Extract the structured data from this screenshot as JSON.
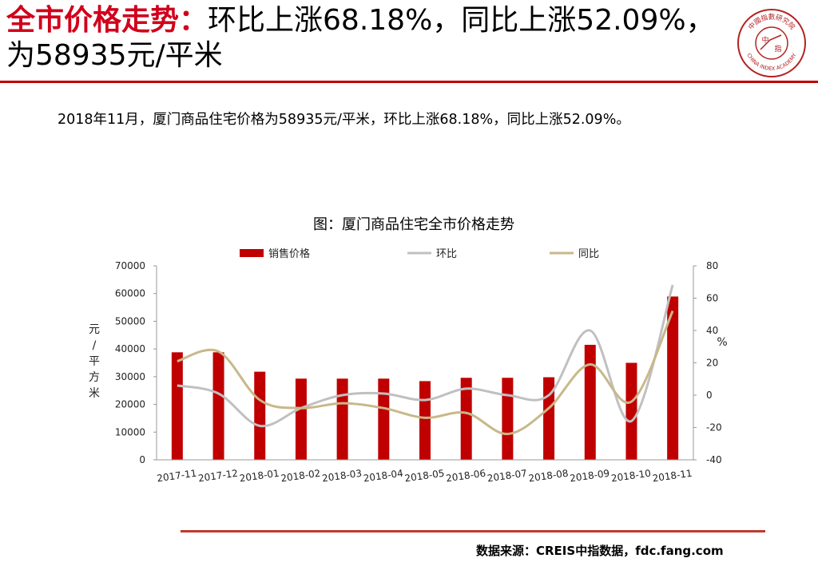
{
  "header": {
    "title_key": "全市价格走势：",
    "title_rest": "环比上涨68.18%，同比上涨52.09%，为58935元/平米"
  },
  "logo": {
    "icon": "china-index-academy-seal",
    "text_top": "中國指數研究院",
    "text_bottom": "CHINA INDEX ACADEMY",
    "center_a": "中",
    "center_b": "指",
    "color": "#b22222"
  },
  "summary": "2018年11月，厦门商品住宅价格为58935元/平米，环比上涨68.18%，同比上涨52.09%。",
  "chart_data": {
    "type": "bar",
    "title": "图：厦门商品住宅全市价格走势",
    "categories": [
      "2017-11",
      "2017-12",
      "2018-01",
      "2018-02",
      "2018-03",
      "2018-04",
      "2018-05",
      "2018-06",
      "2018-07",
      "2018-08",
      "2018-09",
      "2018-10",
      "2018-11"
    ],
    "series": [
      {
        "name": "销售价格",
        "type": "bar",
        "axis": "left",
        "color": "#c00000",
        "values": [
          38800,
          38800,
          31800,
          29300,
          29300,
          29300,
          28400,
          29600,
          29600,
          29800,
          41500,
          35000,
          58935
        ]
      },
      {
        "name": "环比",
        "type": "line",
        "axis": "right",
        "color": "#c0c0c0",
        "values": [
          6,
          1,
          -19,
          -8,
          0,
          1,
          -3,
          4,
          0,
          0,
          40,
          -16,
          68.18
        ]
      },
      {
        "name": "同比",
        "type": "line",
        "axis": "right",
        "color": "#c8b88a",
        "values": [
          21,
          27,
          -3,
          -8,
          -5,
          -8,
          -14,
          -11,
          -24,
          -8,
          19,
          -4,
          52.09
        ]
      }
    ],
    "ylabel": "元/平方米",
    "ylabel_right": "%",
    "ylim": [
      0,
      70000
    ],
    "yticks": [
      0,
      10000,
      20000,
      30000,
      40000,
      50000,
      60000,
      70000
    ],
    "ylim_right": [
      -40,
      80
    ],
    "yticks_right": [
      -40,
      -20,
      0,
      20,
      40,
      60,
      80
    ],
    "grid": false,
    "legend": "top"
  },
  "footer": {
    "source": "数据来源：CREIS中指数据，fdc.fang.com",
    "rule_color": "#c0392b"
  }
}
